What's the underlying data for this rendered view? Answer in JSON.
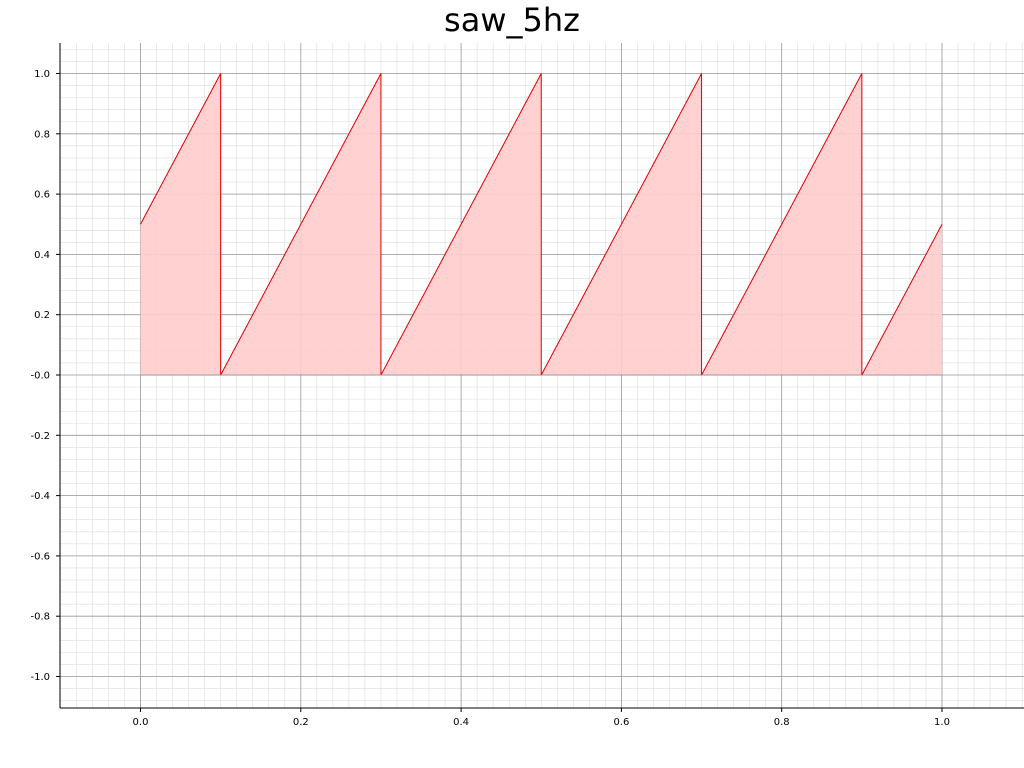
{
  "chart_data": {
    "type": "area",
    "title": "saw_5hz",
    "xlabel": "",
    "ylabel": "",
    "xlim": [
      -0.1,
      1.1
    ],
    "ylim": [
      -1.1,
      1.1
    ],
    "x_ticks": [
      0.0,
      0.2,
      0.4,
      0.6,
      0.8,
      1.0
    ],
    "x_tick_labels": [
      "0.0",
      "0.2",
      "0.4",
      "0.6",
      "0.8",
      "1.0"
    ],
    "y_ticks": [
      1.0,
      0.8,
      0.6,
      0.4,
      0.2,
      0.0,
      -0.2,
      -0.4,
      -0.6,
      -0.8,
      -1.0
    ],
    "y_tick_labels": [
      "1.0",
      "0.8",
      "0.6",
      "0.4",
      "0.2",
      "-0.0",
      "-0.2",
      "-0.4",
      "-0.6",
      "-0.8",
      "-1.0"
    ],
    "grid": true,
    "fill_baseline": 0.0,
    "series": [
      {
        "x": [
          0.0,
          0.1,
          0.1,
          0.3,
          0.3,
          0.5,
          0.5,
          0.7,
          0.7,
          0.9,
          0.9,
          1.0
        ],
        "y": [
          0.5,
          1.0,
          0.0,
          1.0,
          0.0,
          1.0,
          0.0,
          1.0,
          0.0,
          1.0,
          0.0,
          0.5
        ],
        "color": "#e00000",
        "fill_color": "#ffcccc"
      }
    ]
  }
}
